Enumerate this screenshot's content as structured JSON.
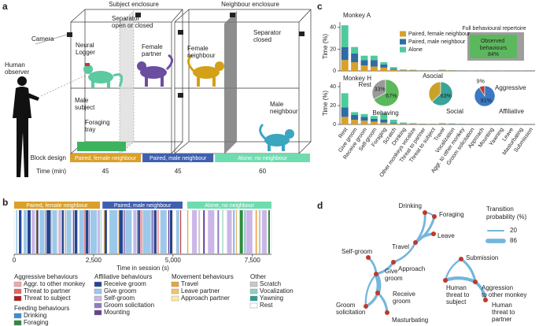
{
  "panel_labels": [
    "a",
    "b",
    "c",
    "d"
  ],
  "panel_a": {
    "subject_enclosure": "Subject enclosure",
    "neighbour_enclosure": "Neighbour enclosure",
    "camera": "Camera",
    "human_observer": "Human observer",
    "separator_open": "Separator open or closed",
    "neural_logger": "Neural Logger",
    "female_partner": "Female partner",
    "female_neighbour": "Female neighbour",
    "separator_closed": "Separator closed",
    "male_subject": "Male subject",
    "foraging_tray": "Foraging tray",
    "male_neighbour": "Male neighbour"
  },
  "chart_data": [
    {
      "type": "block",
      "title": "Block design",
      "axis_label": "Time (min)",
      "categories": [
        "Paired, female neighbour",
        "Paired, male neighbour",
        "Alone, no neighbour"
      ],
      "values": [
        45,
        45,
        60
      ],
      "colors": [
        "#d9a02a",
        "#3f5fb0",
        "#6fdcb0"
      ]
    },
    {
      "type": "timeline",
      "xlabel": "Time in session (s)",
      "xlim": [
        0,
        8100
      ],
      "xticks": [
        0,
        {
          "value": 2500,
          "label": "2,500"
        },
        {
          "value": 5000,
          "label": "5,000"
        },
        {
          "value": 7500,
          "label": "7,500"
        }
      ],
      "blocks": [
        {
          "name": "Paired, female neighbour",
          "color": "#d9a02a",
          "start": 0,
          "end": 2700
        },
        {
          "name": "Paired, male neighbour",
          "color": "#3f5fb0",
          "start": 2780,
          "end": 5300
        },
        {
          "name": "Alone, no neighbour",
          "color": "#6fdcb0",
          "start": 5450,
          "end": 8100
        }
      ],
      "legend_groups": [
        {
          "title": "Aggressive behaviours",
          "items": [
            {
              "name": "Aggr. to other monkey",
              "color": "#f4a6a6",
              "starts": [
                3960,
                4500
              ],
              "ends": [
                4040,
                4560
              ]
            },
            {
              "name": "Threat to partner",
              "color": "#e06666",
              "starts": [
                2210
              ],
              "ends": [
                2240
              ]
            },
            {
              "name": "Threat to subject",
              "color": "#b01c1c",
              "starts": [
                5230
              ],
              "ends": [
                5245
              ]
            }
          ]
        },
        {
          "title": "Feeding behaviours",
          "items": [
            {
              "name": "Drinking",
              "color": "#3a8fd6",
              "starts": [
                6900
              ],
              "ends": [
                6930
              ]
            },
            {
              "name": "Foraging",
              "color": "#2e8b3e",
              "starts": [
                7100,
                8000
              ],
              "ends": [
                7200,
                8050
              ]
            }
          ]
        },
        {
          "title": "Affiliative behaviours",
          "items": [
            {
              "name": "Receive groom",
              "color": "#24458f",
              "starts": [
                150,
                420,
                700,
                1020,
                1500,
                1900,
                2250,
                2850,
                3300,
                3900,
                4400,
                4900
              ],
              "ends": [
                230,
                520,
                760,
                1150,
                1560,
                1990,
                2330,
                2920,
                3420,
                3960,
                4480,
                4980
              ]
            },
            {
              "name": "Give groom",
              "color": "#9cc8ea",
              "starts": [
                60,
                300,
                800,
                1200,
                1650,
                2050,
                2400,
                3000,
                3500,
                4050,
                4600,
                5100
              ],
              "ends": [
                100,
                400,
                950,
                1350,
                1800,
                2200,
                2600,
                3250,
                3700,
                4300,
                4800,
                5200
              ]
            },
            {
              "name": "Self-groom",
              "color": "#cbb6e8",
              "starts": [
                550,
                1400,
                2620,
                3750,
                5600,
                6100,
                6700,
                7300,
                7800
              ],
              "ends": [
                650,
                1480,
                2700,
                3850,
                5750,
                6300,
                6850,
                7500,
                7950
              ]
            },
            {
              "name": "Groom solicitation",
              "color": "#8e7cc3",
              "starts": [
                970,
                2340,
                4320,
                6400
              ],
              "ends": [
                1000,
                2380,
                4380,
                6450
              ]
            },
            {
              "name": "Mounting",
              "color": "#6a3d9a",
              "starts": [
                1850,
                3450,
                4850,
                5950
              ],
              "ends": [
                1880,
                3480,
                4880,
                6000
              ]
            }
          ]
        },
        {
          "title": "Movement behaviours",
          "items": [
            {
              "name": "Travel",
              "color": "#e8a33d",
              "starts": [
                680,
                2820,
                5450,
                6980,
                7600
              ],
              "ends": [
                695,
                2840,
                5480,
                7000,
                7640
              ]
            },
            {
              "name": "Leave partner",
              "color": "#f6c26b",
              "starts": [
                1160,
                3280
              ],
              "ends": [
                1175,
                3295
              ]
            },
            {
              "name": "Approach partner",
              "color": "#fde9a9",
              "starts": [
                1370,
                4990
              ],
              "ends": [
                1390,
                5010
              ]
            }
          ]
        },
        {
          "title": "Other",
          "items": [
            {
              "name": "Scratch",
              "color": "#c8c8c8",
              "starts": [
                1580,
                5800,
                7700
              ],
              "ends": [
                1640,
                5850,
                7760
              ]
            },
            {
              "name": "Vocalization",
              "color": "#8fd0c0",
              "starts": [
                2720,
                6550
              ],
              "ends": [
                2740,
                6580
              ]
            },
            {
              "name": "Yawning",
              "color": "#2a9d8f",
              "starts": [
                3870,
                7250
              ],
              "ends": [
                3890,
                7265
              ]
            },
            {
              "name": "Rest",
              "color": "#ffffff",
              "starts": [
                5500,
                6500
              ],
              "ends": [
                5590,
                6540
              ]
            }
          ]
        }
      ]
    },
    {
      "type": "stacked-bar-pair",
      "ylabel": "Time (%)",
      "ylim": [
        0,
        45
      ],
      "yticks": [
        0,
        20,
        40
      ],
      "categories": [
        "Rest",
        "Give groom",
        "Receive groom",
        "Self-groom",
        "Foraging",
        "Scratch",
        "Drinking",
        "Other monkeys vocalize",
        "Threat to partner",
        "Threat to subject",
        "Travel",
        "Vocalization",
        "Aggr. to other monkey",
        "Groom solicitation",
        "Approach",
        "Mounting",
        "Yawning",
        "Leave",
        "Masturbating",
        "Submission"
      ],
      "series": [
        {
          "name": "Paired, female neighbour",
          "color": "#d9a02a"
        },
        {
          "name": "Paired, male neighbour",
          "color": "#2e6ca4"
        },
        {
          "name": "Alone",
          "color": "#4ecb9c"
        }
      ],
      "panels": [
        {
          "title": "Monkey A",
          "values": [
            [
              10,
              8,
              5,
              4,
              3,
              1,
              0.5,
              0.5,
              0.3,
              0.2,
              0.5,
              0.3,
              0.2,
              0.2,
              0.2,
              0.1,
              0.1,
              0.1,
              0.1,
              0
            ],
            [
              12,
              8,
              5,
              6,
              3,
              1,
              0.3,
              0.3,
              0.2,
              0.2,
              0.3,
              0.2,
              0.2,
              0.1,
              0.1,
              0.1,
              0.1,
              0.1,
              0,
              0
            ],
            [
              20,
              6,
              4,
              4,
              2,
              1.5,
              0.5,
              0.3,
              0,
              0,
              0.3,
              0.2,
              0,
              0,
              0,
              0,
              0.1,
              0,
              0,
              0
            ]
          ]
        },
        {
          "title": "Monkey H",
          "values": [
            [
              8,
              5,
              4,
              3,
              2,
              1,
              0.5,
              0.5,
              0.5,
              0.3,
              0.5,
              0.3,
              0.3,
              0.3,
              0.3,
              0.2,
              0.2,
              0.2,
              0.1,
              0.1
            ],
            [
              10,
              5,
              4,
              3,
              3,
              1,
              0.5,
              0.3,
              0.3,
              0.3,
              0.3,
              0.3,
              0.3,
              0.2,
              0.2,
              0.2,
              0.1,
              0.1,
              0.1,
              0.1
            ],
            [
              15,
              3,
              3,
              3,
              7,
              3,
              1,
              0.5,
              0,
              0,
              0.5,
              0.5,
              0,
              0,
              0,
              0,
              0.3,
              0,
              0.2,
              0
            ]
          ]
        }
      ]
    },
    {
      "type": "pie",
      "categories": [
        "Rest",
        "Behaving"
      ],
      "values": [
        33,
        67
      ],
      "value_labels": [
        "33%",
        "67%"
      ],
      "colors": [
        "#9a9a9a",
        "#5cb85c"
      ]
    },
    {
      "type": "pie",
      "categories": [
        "Asocial",
        "Social"
      ],
      "values": [
        37,
        63
      ],
      "value_labels": [
        null,
        "63%"
      ],
      "colors": [
        "#c9a227",
        "#3aa39a"
      ]
    },
    {
      "type": "pie",
      "categories": [
        "Aggressive",
        "Affiliative"
      ],
      "values": [
        9,
        91
      ],
      "value_labels": [
        "9%",
        "91%"
      ],
      "colors": [
        "#c0392b",
        "#3b78c2"
      ]
    }
  ],
  "repertoire": {
    "outer": "Full behavioural repertoire",
    "inner": "Observed behaviours",
    "share": "84%"
  },
  "graph_d": {
    "legend_title": "Transition probability (%)",
    "legend_values": [
      20,
      86
    ],
    "nodes": [
      "Drinking",
      "Foraging",
      "Travel",
      "Leave",
      "Approach",
      "Self-groom",
      "Give groom",
      "Receive groom",
      "Groom solicitation",
      "Masturbating",
      "Submission",
      "Human threat to subject",
      "Aggression to other monkey",
      "Human threat to partner"
    ],
    "edges": [
      {
        "from": "Drinking",
        "to": "Travel",
        "value": 35
      },
      {
        "from": "Foraging",
        "to": "Travel",
        "value": 40
      },
      {
        "from": "Drinking",
        "to": "Foraging",
        "value": 20
      },
      {
        "from": "Travel",
        "to": "Leave",
        "value": 45
      },
      {
        "from": "Travel",
        "to": "Approach",
        "value": 30
      },
      {
        "from": "Approach",
        "to": "Give groom",
        "value": 40
      },
      {
        "from": "Self-groom",
        "to": "Give groom",
        "value": 35
      },
      {
        "from": "Give groom",
        "to": "Receive groom",
        "value": 86
      },
      {
        "from": "Receive groom",
        "to": "Groom solicitation",
        "value": 45
      },
      {
        "from": "Receive groom",
        "to": "Masturbating",
        "value": 40
      },
      {
        "from": "Groom solicitation",
        "to": "Give groom",
        "value": 25
      },
      {
        "from": "Submission",
        "to": "Aggression to other monkey",
        "value": 40
      },
      {
        "from": "Human threat to subject",
        "to": "Aggression to other monkey",
        "value": 60
      },
      {
        "from": "Aggression to other monkey",
        "to": "Human threat to partner",
        "value": 50
      },
      {
        "from": "Human threat to subject",
        "to": "Submission",
        "value": 25
      }
    ]
  }
}
